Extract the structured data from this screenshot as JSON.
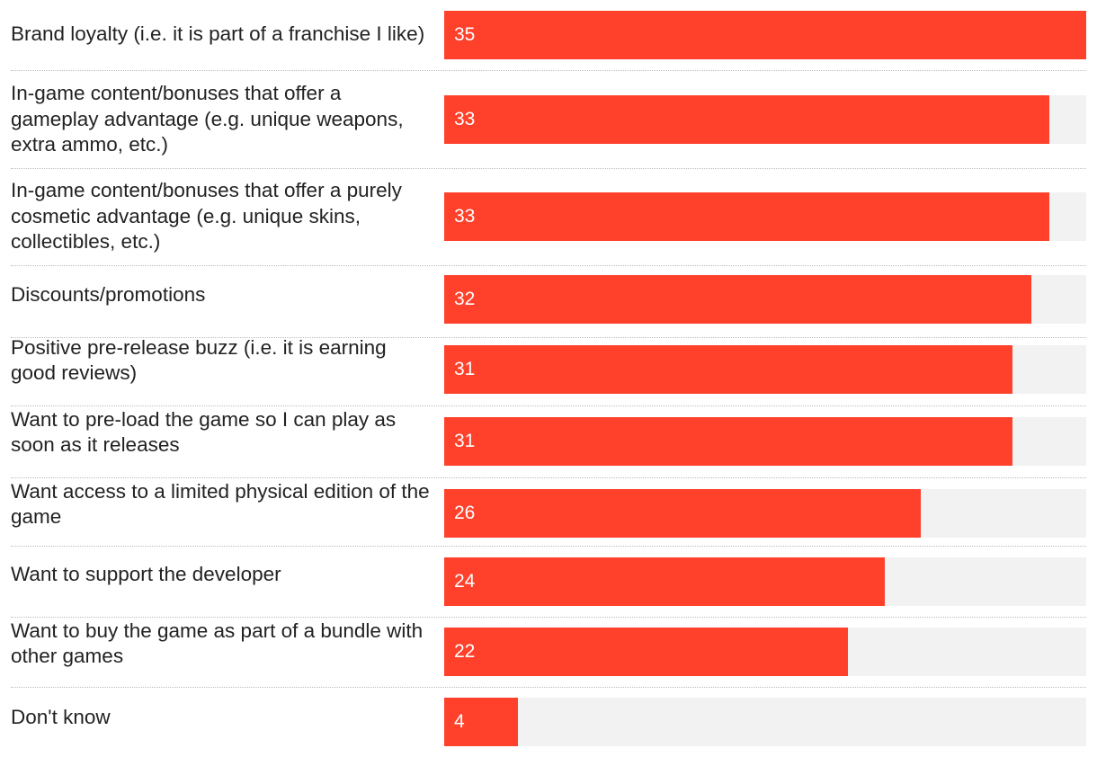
{
  "chart_data": {
    "type": "bar",
    "orientation": "horizontal",
    "title": "",
    "xlabel": "",
    "ylabel": "",
    "xlim": [
      0,
      35
    ],
    "grid": false,
    "legend": "none",
    "colors": {
      "bar": "#ff412c",
      "track": "#f2f2f2",
      "label_text": "#222222",
      "value_text": "#ffffff"
    },
    "categories": [
      "Brand loyalty (i.e. it is part of a franchise I like)",
      "In-game content/bonuses that offer a gameplay advantage (e.g. unique weapons, extra ammo, etc.)",
      "In-game content/bonuses that offer a purely cosmetic advantage (e.g. unique skins, collectibles, etc.)",
      "Discounts/promotions",
      "Positive pre-release buzz (i.e. it is earning good reviews)",
      "Want to pre-load the game so I can play as soon as it releases",
      "Want access to a limited physical edition of the game",
      "Want to support the developer",
      "Want to buy the game as part of a bundle with other games",
      "Don't know"
    ],
    "values": [
      35,
      33,
      33,
      32,
      31,
      31,
      26,
      24,
      22,
      4
    ]
  }
}
